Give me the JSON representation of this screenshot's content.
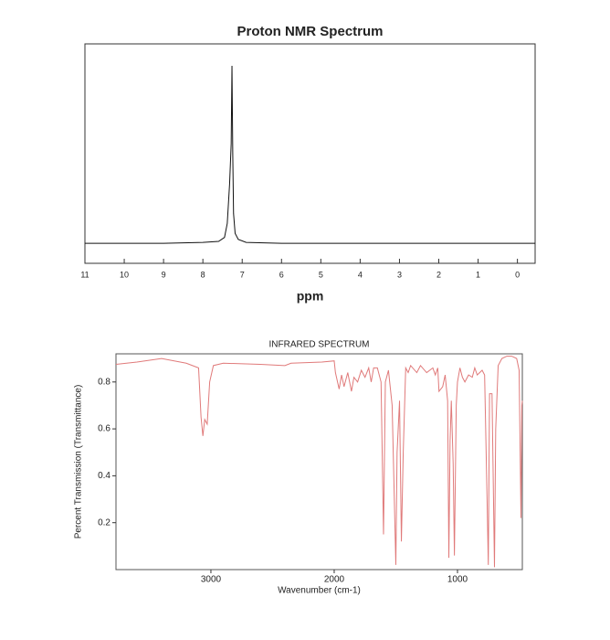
{
  "chart_data": [
    {
      "type": "line",
      "title": "Proton NMR Spectrum",
      "x_label": "ppm",
      "xlim": [
        11,
        -0.45
      ],
      "xticks": [
        11,
        10,
        9,
        8,
        7,
        6,
        5,
        4,
        3,
        2,
        1,
        0
      ],
      "ylim": [
        -0.1,
        1.0
      ],
      "series": [
        {
          "color": "#111111",
          "x": [
            11,
            9,
            8,
            7.6,
            7.45,
            7.38,
            7.32,
            7.28,
            7.26,
            7.24,
            7.22,
            7.18,
            7.1,
            6.9,
            6,
            4,
            2,
            -0.45
          ],
          "values": [
            0,
            0,
            0.005,
            0.01,
            0.03,
            0.1,
            0.3,
            0.5,
            0.89,
            0.45,
            0.15,
            0.05,
            0.02,
            0.005,
            0,
            0,
            0,
            0
          ]
        }
      ]
    },
    {
      "type": "line",
      "title": "INFRARED SPECTRUM",
      "x_label": "Wavenumber (cm-1)",
      "y_label": "Percent Transmission (Transmittance)",
      "xlim": [
        3770,
        474
      ],
      "xticks": [
        3000,
        2000,
        1000
      ],
      "ylim": [
        0,
        0.92
      ],
      "yticks": [
        0.2,
        0.4,
        0.6,
        0.8
      ],
      "series": [
        {
          "color": "#e07a7a",
          "x": [
            3770,
            3600,
            3400,
            3200,
            3100,
            3080,
            3065,
            3050,
            3030,
            3010,
            2980,
            2900,
            2600,
            2400,
            2350,
            2100,
            2000,
            1990,
            1960,
            1940,
            1920,
            1890,
            1860,
            1840,
            1810,
            1780,
            1750,
            1720,
            1700,
            1680,
            1650,
            1620,
            1600,
            1585,
            1560,
            1530,
            1500,
            1490,
            1470,
            1455,
            1440,
            1420,
            1400,
            1380,
            1330,
            1300,
            1250,
            1200,
            1180,
            1160,
            1150,
            1120,
            1100,
            1080,
            1070,
            1060,
            1050,
            1035,
            1025,
            1010,
            1000,
            980,
            960,
            940,
            910,
            880,
            860,
            840,
            800,
            780,
            760,
            750,
            740,
            720,
            700,
            690,
            670,
            640,
            600,
            560,
            520,
            500,
            485,
            478,
            474
          ],
          "values": [
            0.875,
            0.885,
            0.9,
            0.88,
            0.86,
            0.65,
            0.57,
            0.64,
            0.62,
            0.8,
            0.87,
            0.88,
            0.875,
            0.87,
            0.88,
            0.885,
            0.89,
            0.84,
            0.77,
            0.83,
            0.78,
            0.84,
            0.76,
            0.82,
            0.8,
            0.85,
            0.82,
            0.86,
            0.8,
            0.86,
            0.86,
            0.8,
            0.15,
            0.8,
            0.85,
            0.7,
            0.02,
            0.5,
            0.72,
            0.12,
            0.5,
            0.86,
            0.84,
            0.87,
            0.84,
            0.87,
            0.84,
            0.86,
            0.83,
            0.86,
            0.76,
            0.78,
            0.83,
            0.72,
            0.05,
            0.55,
            0.72,
            0.45,
            0.06,
            0.7,
            0.8,
            0.86,
            0.82,
            0.8,
            0.83,
            0.82,
            0.86,
            0.83,
            0.85,
            0.83,
            0.3,
            0.02,
            0.75,
            0.75,
            0.01,
            0.6,
            0.87,
            0.9,
            0.91,
            0.91,
            0.9,
            0.85,
            0.22,
            0.7,
            0.72
          ]
        }
      ]
    }
  ]
}
